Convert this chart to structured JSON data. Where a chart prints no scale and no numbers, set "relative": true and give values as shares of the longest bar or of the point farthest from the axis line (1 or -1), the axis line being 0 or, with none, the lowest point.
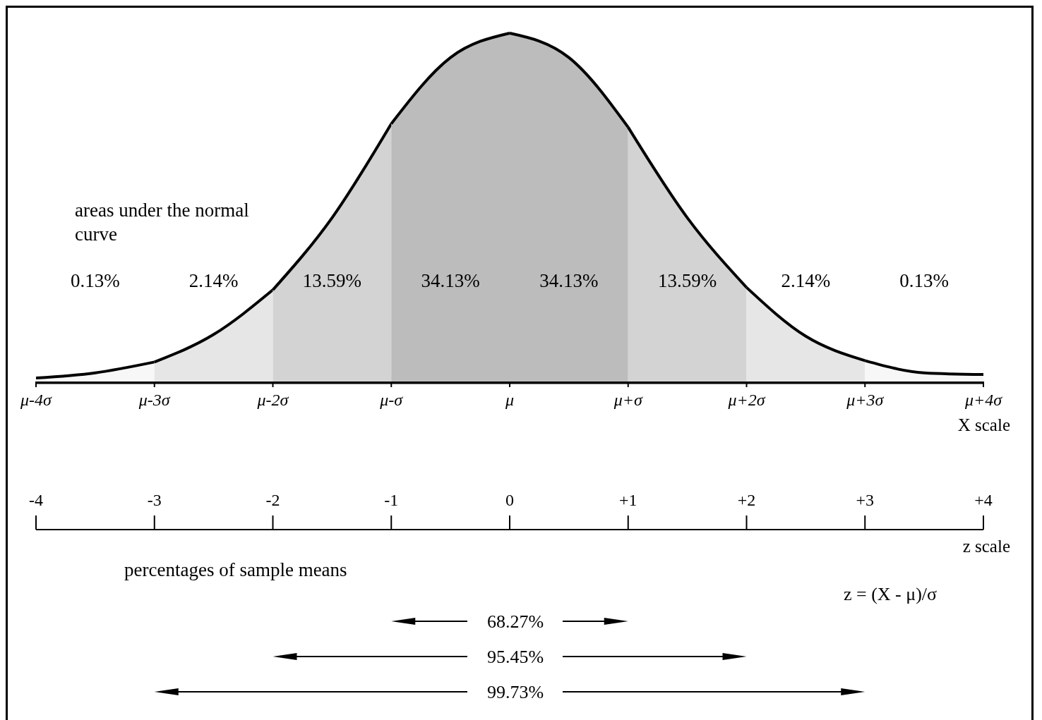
{
  "chart_data": {
    "type": "area",
    "relative": true,
    "xlabel": "z scale",
    "xlim": [
      -4,
      4
    ],
    "xticks": [
      -4,
      -3,
      -2,
      -1,
      0,
      {
        "value": 1,
        "label": "+1"
      },
      {
        "value": 2,
        "label": "+2"
      },
      {
        "value": 3,
        "label": "+3"
      },
      {
        "value": 4,
        "label": "+4"
      }
    ],
    "series": [
      {
        "color": "#f7f7f7",
        "x": [
          -4,
          -3.5,
          -3
        ],
        "values": [
          0.01,
          0.025,
          0.056
        ]
      },
      {
        "color": "#e6e6e6",
        "x": [
          -3,
          -2.5,
          -2
        ],
        "values": [
          0.056,
          0.135,
          0.263
        ]
      },
      {
        "color": "#d3d3d3",
        "x": [
          -2,
          -1.5,
          -1
        ],
        "values": [
          0.263,
          0.47,
          0.74
        ]
      },
      {
        "color": "#bcbcbc",
        "x": [
          -1,
          -0.5,
          0
        ],
        "values": [
          0.74,
          0.93,
          1
        ]
      },
      {
        "color": "#bcbcbc",
        "x": [
          0,
          0.5,
          1
        ],
        "values": [
          1,
          0.93,
          0.73
        ]
      },
      {
        "color": "#d3d3d3",
        "x": [
          1,
          1.5,
          2
        ],
        "values": [
          0.73,
          0.47,
          0.27
        ]
      },
      {
        "color": "#e6e6e6",
        "x": [
          2,
          2.5,
          3
        ],
        "values": [
          0.27,
          0.13,
          0.06
        ]
      },
      {
        "color": "#f7f7f7",
        "x": [
          3,
          3.5,
          4
        ],
        "values": [
          0.06,
          0.025,
          0.02
        ]
      }
    ],
    "annotations": [
      "areas under the normal curve",
      "0.13%",
      "2.14%",
      "13.59%",
      "34.13%",
      "34.13%",
      "13.59%",
      "2.14%",
      "0.13%",
      "μ-4σ",
      "μ-3σ",
      "μ-2σ",
      "μ-σ",
      "μ",
      "μ+σ",
      "μ+2σ",
      "μ+3σ",
      "μ+4σ",
      "X scale",
      "percentages of sample means",
      "z = (X - μ)/σ",
      "68.27%",
      "95.45%",
      "99.73%"
    ]
  }
}
